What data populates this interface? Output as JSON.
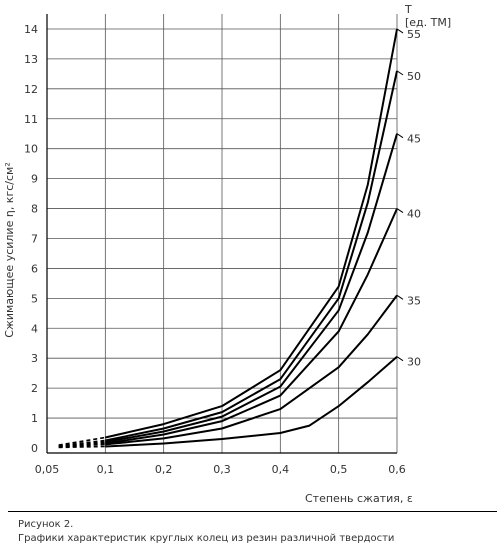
{
  "chart_data": {
    "type": "line",
    "ylabel": "Сжимающее усилие η, кгс/см²",
    "xlabel": "Степень сжатия, ε",
    "legend_title": "T",
    "legend_unit": "[ед. ТМ]",
    "xlim": [
      0.05,
      0.6
    ],
    "ylim": [
      0,
      14.5
    ],
    "x_ticks": [
      0.05,
      0.1,
      0.2,
      0.3,
      0.4,
      0.5,
      0.6
    ],
    "x_tick_labels": [
      "0,05",
      "0,1",
      "0,2",
      "0,3",
      "0,4",
      "0,5",
      "0,6"
    ],
    "y_ticks": [
      0,
      1,
      2,
      3,
      4,
      5,
      6,
      7,
      8,
      9,
      10,
      11,
      12,
      13,
      14
    ],
    "y_tick_labels": [
      "0",
      "1",
      "2",
      "3",
      "4",
      "5",
      "6",
      "7",
      "8",
      "9",
      "10",
      "11",
      "12",
      "13",
      "14"
    ],
    "grid": true,
    "dashed_segment_x": [
      0.06,
      0.1
    ],
    "series": [
      {
        "name": "55",
        "x": [
          0.06,
          0.1,
          0.2,
          0.3,
          0.4,
          0.5,
          0.55,
          0.6
        ],
        "y": [
          0.1,
          0.35,
          0.8,
          1.4,
          2.6,
          5.4,
          8.8,
          14.0
        ]
      },
      {
        "name": "50",
        "x": [
          0.06,
          0.1,
          0.2,
          0.3,
          0.4,
          0.5,
          0.55,
          0.6
        ],
        "y": [
          0.08,
          0.25,
          0.65,
          1.2,
          2.3,
          5.0,
          8.2,
          12.6
        ]
      },
      {
        "name": "45",
        "x": [
          0.06,
          0.1,
          0.2,
          0.3,
          0.4,
          0.5,
          0.55,
          0.6
        ],
        "y": [
          0.07,
          0.2,
          0.55,
          1.05,
          2.05,
          4.6,
          7.2,
          10.5
        ]
      },
      {
        "name": "40",
        "x": [
          0.06,
          0.1,
          0.2,
          0.3,
          0.4,
          0.5,
          0.55,
          0.6
        ],
        "y": [
          0.05,
          0.15,
          0.45,
          0.9,
          1.75,
          3.9,
          5.8,
          8.0
        ]
      },
      {
        "name": "35",
        "x": [
          0.06,
          0.1,
          0.2,
          0.3,
          0.4,
          0.5,
          0.55,
          0.6
        ],
        "y": [
          0.04,
          0.12,
          0.32,
          0.65,
          1.3,
          2.7,
          3.8,
          5.1
        ]
      },
      {
        "name": "30",
        "x": [
          0.06,
          0.1,
          0.2,
          0.3,
          0.4,
          0.45,
          0.5,
          0.55,
          0.6
        ],
        "y": [
          0.02,
          0.05,
          0.15,
          0.3,
          0.5,
          0.75,
          1.4,
          2.2,
          3.05
        ]
      }
    ]
  },
  "caption": {
    "line1": "Рисунок 2.",
    "line2": "Графики характеристик круглых колец из резин различной твердости"
  }
}
